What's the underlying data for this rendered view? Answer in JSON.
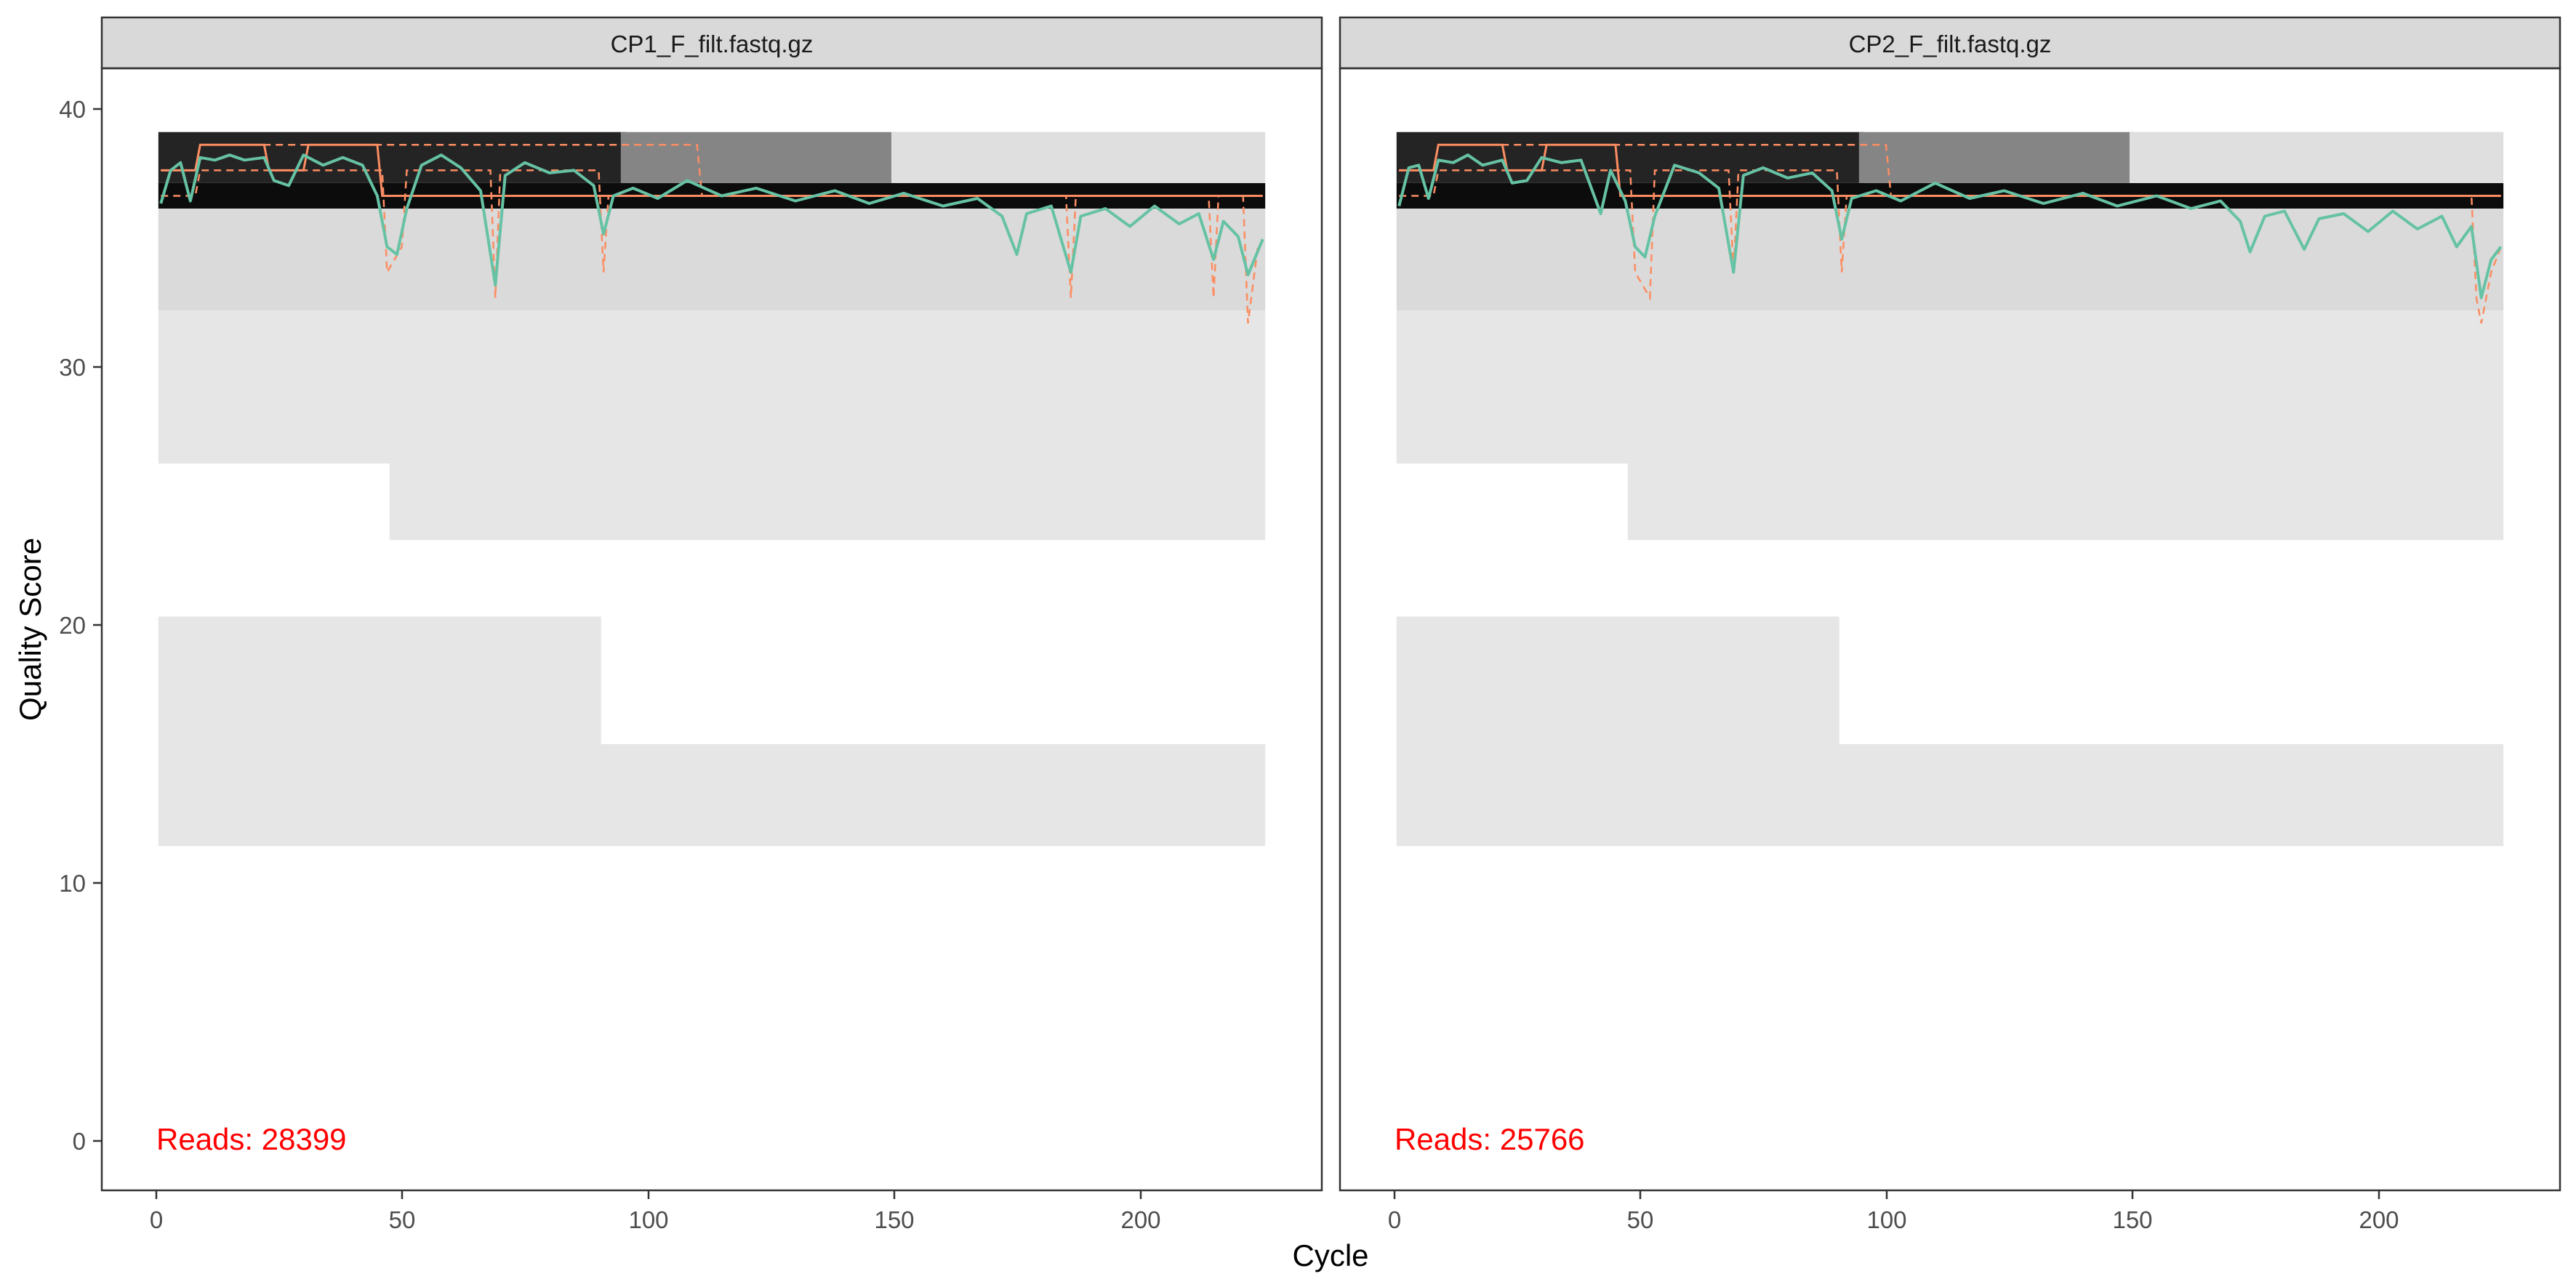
{
  "chart_data": {
    "type": "heatmap",
    "xlabel": "Cycle",
    "ylabel": "Quality Score",
    "xlim": [
      -11,
      237
    ],
    "ylim": [
      -2,
      42
    ],
    "x_ticks": [
      0,
      50,
      100,
      150,
      200
    ],
    "y_ticks": [
      0,
      10,
      20,
      30,
      40
    ],
    "x_tick_labels": [
      "0",
      "50",
      "100",
      "150",
      "200"
    ],
    "y_tick_labels": [
      "0",
      "10",
      "20",
      "30",
      "40"
    ],
    "grid": false,
    "legend": "none",
    "colors": {
      "strip_fill": "#d9d9d9",
      "mean_line": "#66c2a5",
      "quantile_lines": "#fc8d62",
      "reads_text": "#ff0000",
      "heat_low": "#f2f2f2",
      "heat_high": "#000000"
    },
    "panels": [
      {
        "strip_label": "CP1_F_filt.fastq.gz",
        "reads_label": "Reads:  28399",
        "cycles": 225,
        "heat_bands": [
          {
            "q_lo": 36.5,
            "q_hi": 37.5,
            "x_from": 1,
            "x_to": 225,
            "level": 0.95
          },
          {
            "q_lo": 37.5,
            "q_hi": 39.5,
            "x_from": 1,
            "x_to": 95,
            "level": 0.85
          },
          {
            "q_lo": 37.5,
            "q_hi": 39.5,
            "x_from": 95,
            "x_to": 150,
            "level": 0.45
          },
          {
            "q_lo": 37.5,
            "q_hi": 39.5,
            "x_from": 150,
            "x_to": 225,
            "level": 0.08
          },
          {
            "q_lo": 32.5,
            "q_hi": 36.5,
            "x_from": 1,
            "x_to": 225,
            "level": 0.1
          },
          {
            "q_lo": 26.5,
            "q_hi": 32.5,
            "x_from": 1,
            "x_to": 225,
            "level": 0.05
          },
          {
            "q_lo": 23.5,
            "q_hi": 26.5,
            "x_from": 48,
            "x_to": 225,
            "level": 0.05
          },
          {
            "q_lo": 13.5,
            "q_hi": 20.5,
            "x_from": 1,
            "x_to": 90,
            "level": 0.05
          },
          {
            "q_lo": 11.5,
            "q_hi": 15.5,
            "x_from": 1,
            "x_to": 225,
            "level": 0.05
          }
        ],
        "mean_quality": [
          {
            "x": 1,
            "y": 36.7
          },
          {
            "x": 3,
            "y": 38.0
          },
          {
            "x": 5,
            "y": 38.3
          },
          {
            "x": 7,
            "y": 36.8
          },
          {
            "x": 9,
            "y": 38.5
          },
          {
            "x": 12,
            "y": 38.4
          },
          {
            "x": 15,
            "y": 38.6
          },
          {
            "x": 18,
            "y": 38.4
          },
          {
            "x": 22,
            "y": 38.5
          },
          {
            "x": 24,
            "y": 37.6
          },
          {
            "x": 27,
            "y": 37.4
          },
          {
            "x": 30,
            "y": 38.6
          },
          {
            "x": 34,
            "y": 38.2
          },
          {
            "x": 38,
            "y": 38.5
          },
          {
            "x": 42,
            "y": 38.2
          },
          {
            "x": 45,
            "y": 37.0
          },
          {
            "x": 47,
            "y": 35.0
          },
          {
            "x": 49,
            "y": 34.7
          },
          {
            "x": 51,
            "y": 36.5
          },
          {
            "x": 54,
            "y": 38.2
          },
          {
            "x": 58,
            "y": 38.6
          },
          {
            "x": 62,
            "y": 38.1
          },
          {
            "x": 66,
            "y": 37.2
          },
          {
            "x": 69,
            "y": 33.5
          },
          {
            "x": 71,
            "y": 37.8
          },
          {
            "x": 75,
            "y": 38.3
          },
          {
            "x": 80,
            "y": 37.9
          },
          {
            "x": 85,
            "y": 38.0
          },
          {
            "x": 89,
            "y": 37.4
          },
          {
            "x": 91,
            "y": 35.5
          },
          {
            "x": 93,
            "y": 37.0
          },
          {
            "x": 97,
            "y": 37.3
          },
          {
            "x": 102,
            "y": 36.9
          },
          {
            "x": 108,
            "y": 37.6
          },
          {
            "x": 115,
            "y": 37.0
          },
          {
            "x": 122,
            "y": 37.3
          },
          {
            "x": 130,
            "y": 36.8
          },
          {
            "x": 138,
            "y": 37.2
          },
          {
            "x": 145,
            "y": 36.7
          },
          {
            "x": 152,
            "y": 37.1
          },
          {
            "x": 160,
            "y": 36.6
          },
          {
            "x": 167,
            "y": 36.9
          },
          {
            "x": 172,
            "y": 36.2
          },
          {
            "x": 175,
            "y": 34.7
          },
          {
            "x": 177,
            "y": 36.3
          },
          {
            "x": 182,
            "y": 36.6
          },
          {
            "x": 186,
            "y": 34.0
          },
          {
            "x": 188,
            "y": 36.2
          },
          {
            "x": 193,
            "y": 36.5
          },
          {
            "x": 198,
            "y": 35.8
          },
          {
            "x": 203,
            "y": 36.6
          },
          {
            "x": 208,
            "y": 35.9
          },
          {
            "x": 212,
            "y": 36.3
          },
          {
            "x": 215,
            "y": 34.5
          },
          {
            "x": 217,
            "y": 36.0
          },
          {
            "x": 220,
            "y": 35.4
          },
          {
            "x": 222,
            "y": 33.9
          },
          {
            "x": 225,
            "y": 35.3
          }
        ],
        "q25": [
          {
            "x": 1,
            "y": 37.0
          },
          {
            "x": 8,
            "y": 37.0
          },
          {
            "x": 9,
            "y": 38.0
          },
          {
            "x": 46,
            "y": 38.0
          },
          {
            "x": 47,
            "y": 34.0
          },
          {
            "x": 50,
            "y": 35.0
          },
          {
            "x": 51,
            "y": 38.0
          },
          {
            "x": 68,
            "y": 38.0
          },
          {
            "x": 69,
            "y": 33.0
          },
          {
            "x": 70,
            "y": 38.0
          },
          {
            "x": 90,
            "y": 38.0
          },
          {
            "x": 91,
            "y": 34.0
          },
          {
            "x": 92,
            "y": 37.0
          },
          {
            "x": 185,
            "y": 37.0
          },
          {
            "x": 186,
            "y": 33.0
          },
          {
            "x": 187,
            "y": 37.0
          },
          {
            "x": 214,
            "y": 37.0
          },
          {
            "x": 215,
            "y": 33.0
          },
          {
            "x": 216,
            "y": 37.0
          },
          {
            "x": 221,
            "y": 37.0
          },
          {
            "x": 222,
            "y": 32.0
          },
          {
            "x": 224,
            "y": 35.0
          }
        ],
        "median": [
          {
            "x": 1,
            "y": 38.0
          },
          {
            "x": 8,
            "y": 38.0
          },
          {
            "x": 9,
            "y": 39.0
          },
          {
            "x": 22,
            "y": 39.0
          },
          {
            "x": 23,
            "y": 38.0
          },
          {
            "x": 30,
            "y": 38.0
          },
          {
            "x": 31,
            "y": 39.0
          },
          {
            "x": 45,
            "y": 39.0
          },
          {
            "x": 46,
            "y": 37.0
          },
          {
            "x": 94,
            "y": 37.0
          },
          {
            "x": 225,
            "y": 37.0
          }
        ],
        "q75": [
          {
            "x": 1,
            "y": 38.0
          },
          {
            "x": 8,
            "y": 38.0
          },
          {
            "x": 9,
            "y": 39.0
          },
          {
            "x": 110,
            "y": 39.0
          },
          {
            "x": 111,
            "y": 37.0
          },
          {
            "x": 225,
            "y": 37.0
          }
        ]
      },
      {
        "strip_label": "CP2_F_filt.fastq.gz",
        "reads_label": "Reads:  25766",
        "cycles": 225,
        "heat_bands": [
          {
            "q_lo": 36.5,
            "q_hi": 37.5,
            "x_from": 1,
            "x_to": 225,
            "level": 0.95
          },
          {
            "q_lo": 37.5,
            "q_hi": 39.5,
            "x_from": 1,
            "x_to": 95,
            "level": 0.85
          },
          {
            "q_lo": 37.5,
            "q_hi": 39.5,
            "x_from": 95,
            "x_to": 150,
            "level": 0.45
          },
          {
            "q_lo": 37.5,
            "q_hi": 39.5,
            "x_from": 150,
            "x_to": 225,
            "level": 0.08
          },
          {
            "q_lo": 32.5,
            "q_hi": 36.5,
            "x_from": 1,
            "x_to": 225,
            "level": 0.1
          },
          {
            "q_lo": 26.5,
            "q_hi": 32.5,
            "x_from": 1,
            "x_to": 225,
            "level": 0.05
          },
          {
            "q_lo": 23.5,
            "q_hi": 26.5,
            "x_from": 48,
            "x_to": 225,
            "level": 0.05
          },
          {
            "q_lo": 13.5,
            "q_hi": 20.5,
            "x_from": 1,
            "x_to": 90,
            "level": 0.05
          },
          {
            "q_lo": 11.5,
            "q_hi": 15.5,
            "x_from": 1,
            "x_to": 225,
            "level": 0.05
          }
        ],
        "mean_quality": [
          {
            "x": 1,
            "y": 36.6
          },
          {
            "x": 3,
            "y": 38.1
          },
          {
            "x": 5,
            "y": 38.2
          },
          {
            "x": 7,
            "y": 36.9
          },
          {
            "x": 9,
            "y": 38.4
          },
          {
            "x": 12,
            "y": 38.3
          },
          {
            "x": 15,
            "y": 38.6
          },
          {
            "x": 18,
            "y": 38.2
          },
          {
            "x": 22,
            "y": 38.4
          },
          {
            "x": 24,
            "y": 37.5
          },
          {
            "x": 27,
            "y": 37.6
          },
          {
            "x": 30,
            "y": 38.5
          },
          {
            "x": 34,
            "y": 38.3
          },
          {
            "x": 38,
            "y": 38.4
          },
          {
            "x": 42,
            "y": 36.3
          },
          {
            "x": 44,
            "y": 38.0
          },
          {
            "x": 47,
            "y": 36.8
          },
          {
            "x": 49,
            "y": 35.0
          },
          {
            "x": 51,
            "y": 34.6
          },
          {
            "x": 53,
            "y": 36.2
          },
          {
            "x": 57,
            "y": 38.2
          },
          {
            "x": 62,
            "y": 37.9
          },
          {
            "x": 66,
            "y": 37.3
          },
          {
            "x": 69,
            "y": 34.0
          },
          {
            "x": 71,
            "y": 37.8
          },
          {
            "x": 75,
            "y": 38.1
          },
          {
            "x": 80,
            "y": 37.7
          },
          {
            "x": 85,
            "y": 37.9
          },
          {
            "x": 89,
            "y": 37.2
          },
          {
            "x": 91,
            "y": 35.3
          },
          {
            "x": 93,
            "y": 36.9
          },
          {
            "x": 98,
            "y": 37.2
          },
          {
            "x": 103,
            "y": 36.8
          },
          {
            "x": 110,
            "y": 37.5
          },
          {
            "x": 117,
            "y": 36.9
          },
          {
            "x": 124,
            "y": 37.2
          },
          {
            "x": 132,
            "y": 36.7
          },
          {
            "x": 140,
            "y": 37.1
          },
          {
            "x": 147,
            "y": 36.6
          },
          {
            "x": 155,
            "y": 37.0
          },
          {
            "x": 162,
            "y": 36.5
          },
          {
            "x": 168,
            "y": 36.8
          },
          {
            "x": 172,
            "y": 36.0
          },
          {
            "x": 174,
            "y": 34.8
          },
          {
            "x": 177,
            "y": 36.2
          },
          {
            "x": 181,
            "y": 36.4
          },
          {
            "x": 185,
            "y": 34.9
          },
          {
            "x": 188,
            "y": 36.1
          },
          {
            "x": 193,
            "y": 36.3
          },
          {
            "x": 198,
            "y": 35.6
          },
          {
            "x": 203,
            "y": 36.4
          },
          {
            "x": 208,
            "y": 35.7
          },
          {
            "x": 213,
            "y": 36.2
          },
          {
            "x": 216,
            "y": 35.0
          },
          {
            "x": 219,
            "y": 35.8
          },
          {
            "x": 221,
            "y": 33.0
          },
          {
            "x": 223,
            "y": 34.5
          },
          {
            "x": 225,
            "y": 35.0
          }
        ],
        "q25": [
          {
            "x": 1,
            "y": 37.0
          },
          {
            "x": 8,
            "y": 37.0
          },
          {
            "x": 9,
            "y": 38.0
          },
          {
            "x": 48,
            "y": 38.0
          },
          {
            "x": 49,
            "y": 34.0
          },
          {
            "x": 52,
            "y": 33.0
          },
          {
            "x": 53,
            "y": 38.0
          },
          {
            "x": 68,
            "y": 38.0
          },
          {
            "x": 69,
            "y": 34.0
          },
          {
            "x": 70,
            "y": 38.0
          },
          {
            "x": 90,
            "y": 38.0
          },
          {
            "x": 91,
            "y": 34.0
          },
          {
            "x": 92,
            "y": 37.0
          },
          {
            "x": 219,
            "y": 37.0
          },
          {
            "x": 220,
            "y": 33.0
          },
          {
            "x": 221,
            "y": 32.0
          },
          {
            "x": 223,
            "y": 34.0
          },
          {
            "x": 225,
            "y": 35.0
          }
        ],
        "median": [
          {
            "x": 1,
            "y": 38.0
          },
          {
            "x": 8,
            "y": 38.0
          },
          {
            "x": 9,
            "y": 39.0
          },
          {
            "x": 22,
            "y": 39.0
          },
          {
            "x": 23,
            "y": 38.0
          },
          {
            "x": 30,
            "y": 38.0
          },
          {
            "x": 31,
            "y": 39.0
          },
          {
            "x": 45,
            "y": 39.0
          },
          {
            "x": 46,
            "y": 37.0
          },
          {
            "x": 225,
            "y": 37.0
          }
        ],
        "q75": [
          {
            "x": 1,
            "y": 38.0
          },
          {
            "x": 8,
            "y": 38.0
          },
          {
            "x": 9,
            "y": 39.0
          },
          {
            "x": 100,
            "y": 39.0
          },
          {
            "x": 101,
            "y": 37.0
          },
          {
            "x": 225,
            "y": 37.0
          }
        ]
      }
    ]
  }
}
